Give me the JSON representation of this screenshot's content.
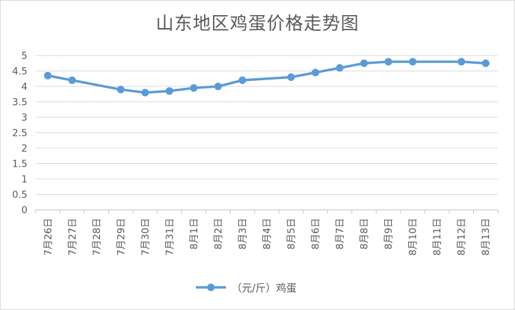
{
  "chart_data": {
    "type": "line",
    "title": "山东地区鸡蛋价格走势图",
    "categories": [
      "7月26日",
      "7月27日",
      "7月28日",
      "7月29日",
      "7月30日",
      "7月31日",
      "8月1日",
      "8月2日",
      "8月3日",
      "8月4日",
      "8月5日",
      "8月6日",
      "8月7日",
      "8月8日",
      "8月9日",
      "8月10日",
      "8月11日",
      "8月12日",
      "8月13日"
    ],
    "series": [
      {
        "name": "（元/斤）鸡蛋",
        "values": [
          4.35,
          4.2,
          null,
          3.9,
          3.8,
          3.85,
          3.95,
          4.0,
          4.2,
          null,
          4.3,
          4.45,
          4.6,
          4.75,
          4.8,
          4.8,
          null,
          4.8,
          4.75
        ],
        "color": "#5b9bd5"
      }
    ],
    "ylim": [
      0,
      5
    ],
    "yticks": [
      "0",
      "0.5",
      "1",
      "1.5",
      "2",
      "2.5",
      "3",
      "3.5",
      "4",
      "4.5",
      "5"
    ],
    "grid": true,
    "legend": "bottom"
  }
}
